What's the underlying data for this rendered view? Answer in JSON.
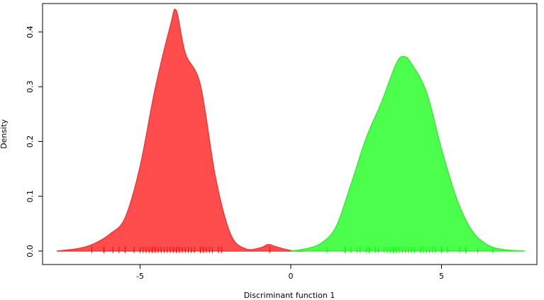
{
  "chart_data": {
    "type": "area",
    "x_label": "Discriminant function 1",
    "y_label": "Density",
    "xlim": [
      -8.235,
      8.165
    ],
    "ylim": [
      -0.0246,
      0.4518
    ],
    "xticks": [
      -5,
      0,
      5
    ],
    "yticks": [
      {
        "value": 0,
        "label": "0.0"
      },
      0.1,
      0.2,
      0.3,
      0.4
    ],
    "series": [
      {
        "color": "#ff4d4d",
        "line_color": "#e83a3a",
        "rug_color": "#ff0000",
        "x": [
          -7.76,
          -7,
          -6.5,
          -6,
          -5.5,
          -5,
          -4.5,
          -4,
          -3.8,
          -3.5,
          -3,
          -2.5,
          -2,
          -1.5,
          -1,
          -0.75,
          -0.5,
          0,
          0.47
        ],
        "values": [
          0,
          0.005,
          0.014,
          0.031,
          0.06,
          0.154,
          0.296,
          0.41,
          0.439,
          0.361,
          0.303,
          0.135,
          0.031,
          0.004,
          0.006,
          0.012,
          0.008,
          0.001,
          0
        ],
        "rug": [
          -6.6,
          -6.2,
          -5.9,
          -5.7,
          -5.5,
          -5.2,
          -5.0,
          -4.9,
          -4.8,
          -4.7,
          -4.6,
          -4.5,
          -4.4,
          -4.3,
          -4.2,
          -4.1,
          -4.0,
          -3.9,
          -3.8,
          -3.7,
          -3.6,
          -3.5,
          -3.4,
          -3.3,
          -3.2,
          -3.0,
          -2.9,
          -2.8,
          -2.7,
          -2.6,
          -2.4,
          -2.3,
          -0.7
        ]
      },
      {
        "color": "#4dff4d",
        "line_color": "#3ae83a",
        "rug_color": "#00ff00",
        "x": [
          0,
          0.5,
          1,
          1.5,
          2,
          2.5,
          3,
          3.5,
          3.75,
          4,
          4.5,
          5,
          5.5,
          6,
          6.5,
          7,
          7.76
        ],
        "values": [
          0,
          0.004,
          0.014,
          0.044,
          0.122,
          0.206,
          0.27,
          0.342,
          0.355,
          0.342,
          0.29,
          0.186,
          0.096,
          0.038,
          0.012,
          0.003,
          0
        ],
        "rug": [
          1.2,
          1.8,
          2.0,
          2.2,
          2.3,
          2.5,
          2.6,
          2.8,
          2.9,
          3.1,
          3.2,
          3.3,
          3.4,
          3.5,
          3.6,
          3.7,
          3.8,
          3.9,
          4.0,
          4.1,
          4.3,
          4.4,
          4.5,
          4.6,
          4.7,
          4.8,
          5.0,
          5.2,
          5.6,
          5.8,
          6.2,
          6.7
        ]
      }
    ]
  }
}
